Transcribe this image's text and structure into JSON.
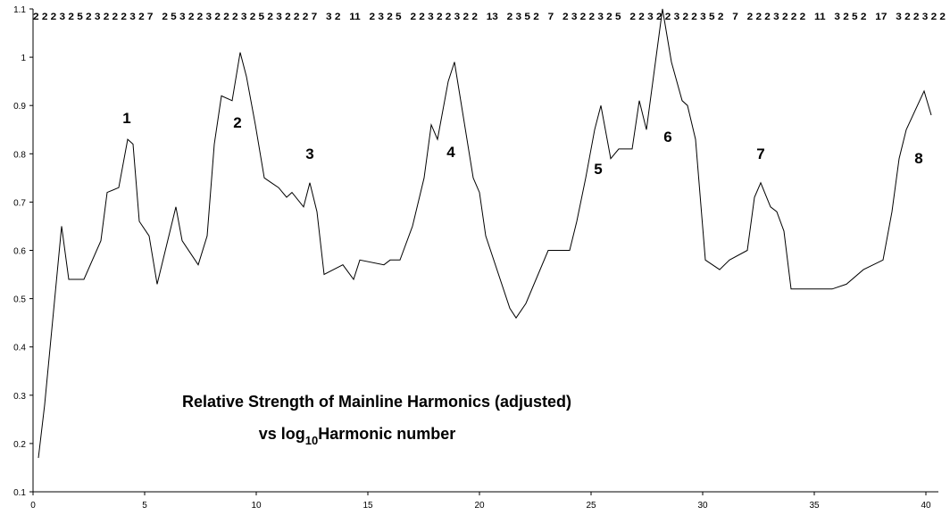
{
  "chart_data": {
    "type": "line",
    "title": "Relative Strength of Mainline Harmonics (adjusted)",
    "subtitle_parts": [
      "vs log",
      "10",
      "Harmonic number"
    ],
    "top_labels": "2 2 2 3 2 5 2 3 2 2 2 3 2 7   2 5 3 2 2 3 2 2 2 3 2 5 2 3 2 2 2 7   3 2   11   2 3 2 5   2 2 3 2 2 3 2 2   13   2 3 5 2   7   2 3 2 2 3 2 5   2 2 3 2 2 3 2 2 3 5 2   7   2 2 2 3 2 2 2   11   3 2 5 2   17   3 2 2 3 2 2",
    "annotations": [
      "1",
      "2",
      "3",
      "4",
      "5",
      "6",
      "7",
      "8"
    ],
    "color": "#000000",
    "x": [
      0.24,
      0.52,
      1.28,
      1.6,
      2.28,
      3.04,
      3.32,
      3.84,
      4.24,
      4.48,
      4.76,
      5.2,
      5.56,
      6.4,
      6.68,
      7.4,
      7.8,
      8.12,
      8.44,
      8.92,
      9.28,
      9.56,
      9.96,
      10.36,
      10.68,
      11,
      11.36,
      11.6,
      12.12,
      12.4,
      12.72,
      13.04,
      13.88,
      14.36,
      14.64,
      15.72,
      16,
      16.44,
      17,
      17.52,
      17.84,
      18.12,
      18.6,
      18.88,
      19.72,
      20,
      20.28,
      21.36,
      21.64,
      22.08,
      23.08,
      24.04,
      24.36,
      24.76,
      25.16,
      25.44,
      25.88,
      26.24,
      26.84,
      27.16,
      27.48,
      28.2,
      28.6,
      29.08,
      29.32,
      29.68,
      30.12,
      30.76,
      31.2,
      32,
      32.32,
      32.6,
      33.04,
      33.32,
      33.64,
      33.96,
      35.8,
      36.44,
      37.2,
      38.08,
      38.48,
      38.8,
      39.12,
      39.92,
      40.24
    ],
    "values": [
      0.17,
      0.28,
      0.65,
      0.54,
      0.54,
      0.62,
      0.72,
      0.73,
      0.83,
      0.82,
      0.66,
      0.63,
      0.53,
      0.69,
      0.62,
      0.57,
      0.63,
      0.82,
      0.92,
      0.91,
      1.01,
      0.96,
      0.86,
      0.75,
      0.74,
      0.73,
      0.71,
      0.72,
      0.69,
      0.74,
      0.68,
      0.55,
      0.57,
      0.54,
      0.58,
      0.57,
      0.58,
      0.58,
      0.65,
      0.75,
      0.86,
      0.83,
      0.95,
      0.99,
      0.75,
      0.72,
      0.63,
      0.48,
      0.46,
      0.49,
      0.6,
      0.6,
      0.66,
      0.75,
      0.85,
      0.9,
      0.79,
      0.81,
      0.81,
      0.91,
      0.85,
      1.1,
      0.99,
      0.91,
      0.9,
      0.83,
      0.58,
      0.56,
      0.58,
      0.6,
      0.71,
      0.74,
      0.69,
      0.68,
      0.64,
      0.52,
      0.52,
      0.53,
      0.56,
      0.58,
      0.68,
      0.79,
      0.85,
      0.93,
      0.88
    ],
    "xlim": [
      0,
      40
    ],
    "xticks": [
      0,
      5,
      10,
      15,
      20,
      25,
      30,
      35,
      40
    ],
    "ylim": [
      0.1,
      1.1
    ],
    "yticks": [
      0.1,
      0.2,
      0.3,
      0.4,
      0.5,
      0.6,
      0.7,
      0.8,
      0.9,
      1,
      1.1
    ]
  }
}
